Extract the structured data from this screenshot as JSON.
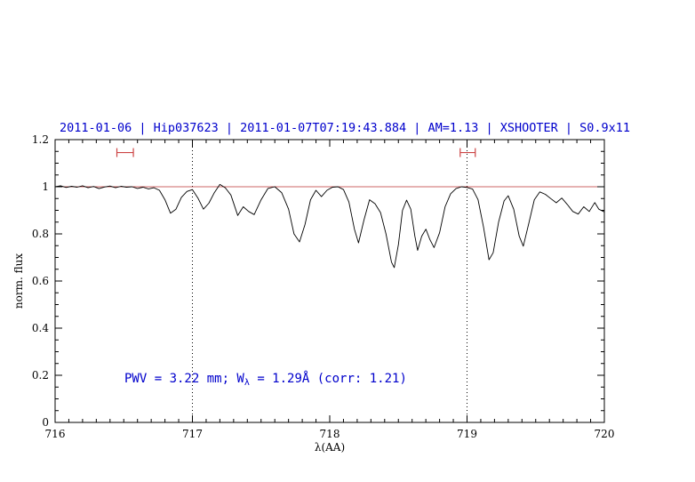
{
  "title": "2011-01-06 | Hip037623 | 2011-01-07T07:19:43.884 | AM=1.13 | XSHOOTER | S0.9x11",
  "annotation": {
    "part1": "PWV = 3.22 mm; W",
    "sub": "λ",
    "part2": " = 1.29Å (corr: 1.21)"
  },
  "colors": {
    "title": "#0000cc",
    "annotation": "#0000cc",
    "spectrum": "#000000",
    "reference": "#bb3333",
    "marker": "#cc4444",
    "frame": "#000000"
  },
  "chart_data": {
    "type": "line",
    "title": "2011-01-06 | Hip037623 | 2011-01-07T07:19:43.884 | AM=1.13 | XSHOOTER | S0.9x11",
    "xlabel": "λ(AA)",
    "ylabel": "norm. flux",
    "xlim": [
      716,
      720
    ],
    "ylim": [
      0,
      1.2
    ],
    "xticks": [
      716,
      717,
      718,
      719,
      720
    ],
    "xtick_labels": [
      "716",
      "717",
      "718",
      "719",
      "720"
    ],
    "yticks": [
      0,
      0.2,
      0.4,
      0.6,
      0.8,
      1,
      1.2
    ],
    "ytick_labels": [
      "0",
      "0.2",
      "0.4",
      "0.6",
      "0.8",
      "1",
      "1.2"
    ],
    "grid": false,
    "legend": "none",
    "dotted_vlines": [
      717,
      719
    ],
    "reference_line_y": 1.0,
    "annotation_text": "PWV = 3.22 mm; W_λ = 1.29Å (corr: 1.21)",
    "range_markers": [
      {
        "x1": 716.45,
        "x2": 716.57,
        "y": 1.145
      },
      {
        "x1": 718.95,
        "x2": 719.06,
        "y": 1.145
      }
    ],
    "series": [
      {
        "name": "telluric-spectrum",
        "points": [
          [
            716.0,
            1.0
          ],
          [
            716.04,
            1.004
          ],
          [
            716.08,
            0.997
          ],
          [
            716.12,
            1.002
          ],
          [
            716.16,
            0.998
          ],
          [
            716.2,
            1.004
          ],
          [
            716.24,
            0.996
          ],
          [
            716.28,
            1.001
          ],
          [
            716.32,
            0.992
          ],
          [
            716.36,
            0.999
          ],
          [
            716.4,
            1.003
          ],
          [
            716.44,
            0.996
          ],
          [
            716.48,
            1.002
          ],
          [
            716.52,
            0.998
          ],
          [
            716.56,
            1.0
          ],
          [
            716.6,
            0.993
          ],
          [
            716.64,
            0.998
          ],
          [
            716.68,
            0.991
          ],
          [
            716.72,
            0.996
          ],
          [
            716.76,
            0.985
          ],
          [
            716.8,
            0.945
          ],
          [
            716.84,
            0.888
          ],
          [
            716.88,
            0.905
          ],
          [
            716.92,
            0.955
          ],
          [
            716.96,
            0.98
          ],
          [
            717.0,
            0.988
          ],
          [
            717.04,
            0.952
          ],
          [
            717.08,
            0.905
          ],
          [
            717.12,
            0.93
          ],
          [
            717.16,
            0.975
          ],
          [
            717.2,
            1.01
          ],
          [
            717.24,
            0.995
          ],
          [
            717.28,
            0.965
          ],
          [
            717.33,
            0.878
          ],
          [
            717.37,
            0.915
          ],
          [
            717.41,
            0.895
          ],
          [
            717.45,
            0.882
          ],
          [
            717.5,
            0.945
          ],
          [
            717.55,
            0.993
          ],
          [
            717.6,
            1.0
          ],
          [
            717.65,
            0.975
          ],
          [
            717.7,
            0.905
          ],
          [
            717.74,
            0.8
          ],
          [
            717.78,
            0.766
          ],
          [
            717.82,
            0.84
          ],
          [
            717.86,
            0.945
          ],
          [
            717.9,
            0.985
          ],
          [
            717.94,
            0.958
          ],
          [
            717.98,
            0.985
          ],
          [
            718.02,
            0.998
          ],
          [
            718.06,
            1.0
          ],
          [
            718.1,
            0.988
          ],
          [
            718.14,
            0.935
          ],
          [
            718.18,
            0.82
          ],
          [
            718.21,
            0.762
          ],
          [
            718.25,
            0.86
          ],
          [
            718.29,
            0.945
          ],
          [
            718.33,
            0.928
          ],
          [
            718.37,
            0.89
          ],
          [
            718.41,
            0.8
          ],
          [
            718.45,
            0.68
          ],
          [
            718.47,
            0.657
          ],
          [
            718.5,
            0.755
          ],
          [
            718.53,
            0.9
          ],
          [
            718.56,
            0.943
          ],
          [
            718.59,
            0.905
          ],
          [
            718.62,
            0.79
          ],
          [
            718.64,
            0.73
          ],
          [
            718.67,
            0.79
          ],
          [
            718.7,
            0.82
          ],
          [
            718.73,
            0.775
          ],
          [
            718.76,
            0.742
          ],
          [
            718.8,
            0.805
          ],
          [
            718.84,
            0.915
          ],
          [
            718.88,
            0.97
          ],
          [
            718.92,
            0.992
          ],
          [
            718.96,
            1.0
          ],
          [
            719.0,
            0.997
          ],
          [
            719.04,
            0.99
          ],
          [
            719.08,
            0.945
          ],
          [
            719.12,
            0.83
          ],
          [
            719.16,
            0.69
          ],
          [
            719.19,
            0.72
          ],
          [
            719.23,
            0.85
          ],
          [
            719.27,
            0.94
          ],
          [
            719.3,
            0.962
          ],
          [
            719.34,
            0.905
          ],
          [
            719.38,
            0.79
          ],
          [
            719.41,
            0.748
          ],
          [
            719.45,
            0.845
          ],
          [
            719.49,
            0.945
          ],
          [
            719.53,
            0.978
          ],
          [
            719.57,
            0.968
          ],
          [
            719.61,
            0.95
          ],
          [
            719.65,
            0.932
          ],
          [
            719.69,
            0.952
          ],
          [
            719.73,
            0.925
          ],
          [
            719.77,
            0.895
          ],
          [
            719.81,
            0.884
          ],
          [
            719.85,
            0.915
          ],
          [
            719.89,
            0.895
          ],
          [
            719.93,
            0.933
          ],
          [
            719.96,
            0.905
          ],
          [
            720.0,
            0.893
          ]
        ]
      }
    ]
  }
}
